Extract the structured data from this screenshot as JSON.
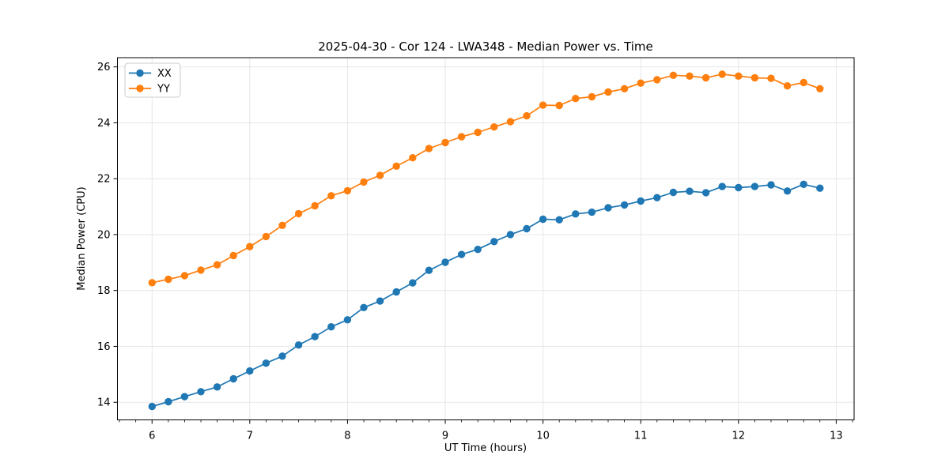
{
  "chart_data": {
    "type": "line",
    "title": "2025-04-30 - Cor 124 - LWA348 - Median Power vs. Time",
    "xlabel": "UT Time (hours)",
    "ylabel": "Median Power (CPU)",
    "xlim": [
      5.646,
      13.183
    ],
    "ylim": [
      13.37,
      26.33
    ],
    "xticks": [
      6,
      7,
      8,
      9,
      10,
      11,
      12,
      13
    ],
    "yticks": [
      14,
      16,
      18,
      20,
      22,
      24,
      26
    ],
    "x_minor_step": 0.1666667,
    "grid": true,
    "grid_color": "#e4e4e4",
    "background": "#ffffff",
    "legend_position": "upper left",
    "x": [
      6.0,
      6.1667,
      6.3333,
      6.5,
      6.6667,
      6.8333,
      7.0,
      7.1667,
      7.3333,
      7.5,
      7.6667,
      7.8333,
      8.0,
      8.1667,
      8.3333,
      8.5,
      8.6667,
      8.8333,
      9.0,
      9.1667,
      9.3333,
      9.5,
      9.6667,
      9.8333,
      10.0,
      10.1667,
      10.3333,
      10.5,
      10.6667,
      10.8333,
      11.0,
      11.1667,
      11.3333,
      11.5,
      11.6667,
      11.8333,
      12.0,
      12.1667,
      12.3333,
      12.5,
      12.6667,
      12.8333
    ],
    "series": [
      {
        "name": "XX",
        "color": "#1f77b4",
        "values": [
          13.85,
          14.02,
          14.2,
          14.38,
          14.55,
          14.84,
          15.12,
          15.4,
          15.65,
          16.05,
          16.35,
          16.7,
          16.95,
          17.39,
          17.62,
          17.95,
          18.27,
          18.72,
          19.01,
          19.29,
          19.47,
          19.75,
          20.0,
          20.21,
          20.55,
          20.53,
          20.74,
          20.8,
          20.96,
          21.06,
          21.2,
          21.32,
          21.51,
          21.55,
          21.5,
          21.72,
          21.68,
          21.72,
          21.78,
          21.56,
          21.8,
          21.66
        ]
      },
      {
        "name": "YY",
        "color": "#ff7f0e",
        "values": [
          18.28,
          18.4,
          18.53,
          18.73,
          18.92,
          19.25,
          19.57,
          19.93,
          20.33,
          20.75,
          21.03,
          21.39,
          21.57,
          21.88,
          22.12,
          22.45,
          22.75,
          23.08,
          23.29,
          23.5,
          23.66,
          23.85,
          24.04,
          24.25,
          24.63,
          24.62,
          24.87,
          24.93,
          25.1,
          25.22,
          25.42,
          25.54,
          25.7,
          25.67,
          25.61,
          25.74,
          25.67,
          25.61,
          25.59,
          25.32,
          25.44,
          25.22
        ]
      }
    ]
  }
}
